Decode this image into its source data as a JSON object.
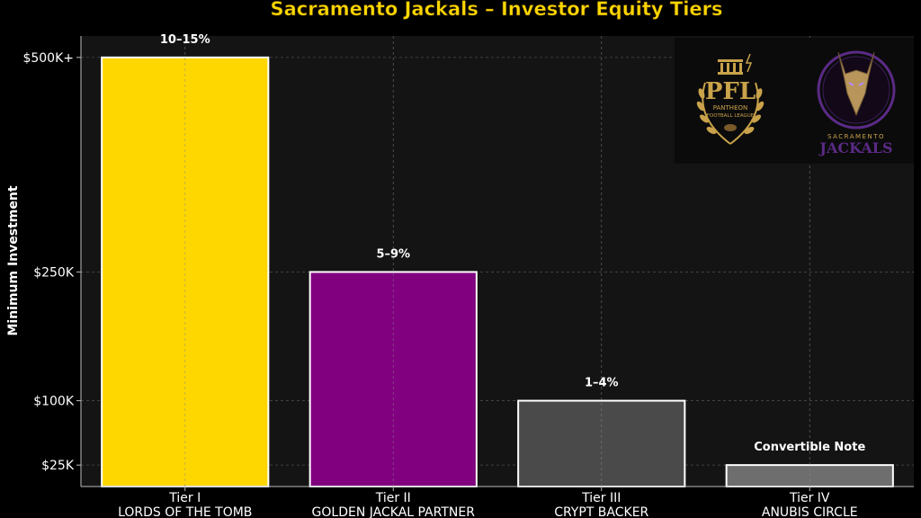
{
  "chart_data": {
    "type": "bar",
    "title": "Sacramento Jackals – Investor Equity Tiers",
    "xlabel": "",
    "ylabel": "Minimum Investment",
    "categories": [
      {
        "tier": "Tier I",
        "name": "LORDS OF THE TOMB"
      },
      {
        "tier": "Tier II",
        "name": "GOLDEN JACKAL PARTNER"
      },
      {
        "tier": "Tier III",
        "name": "CRYPT BACKER"
      },
      {
        "tier": "Tier IV",
        "name": "ANUBIS CIRCLE"
      }
    ],
    "values": [
      500000,
      250000,
      100000,
      25000
    ],
    "equity_labels": [
      "10–15%",
      "5–9%",
      "1–4%",
      "Convertible Note"
    ],
    "bar_colors": [
      "#FFD700",
      "#800080",
      "#4a4a4a",
      "#6e6e6e"
    ],
    "y_ticks": [
      {
        "value": 25000,
        "label": "$25K"
      },
      {
        "value": 100000,
        "label": "$100K"
      },
      {
        "value": 250000,
        "label": "$250K"
      },
      {
        "value": 500000,
        "label": "$500K+"
      }
    ],
    "ylim": [
      0,
      525000
    ],
    "grid": true,
    "legend": "none"
  },
  "logos": {
    "league": {
      "abbr": "PFL",
      "line1": "PANTHEON",
      "line2": "FOOTBALL LEAGUE"
    },
    "team": {
      "line1": "SACRAMENTO",
      "line2": "JACKALS"
    }
  },
  "colors": {
    "background": "#000000",
    "plot_background": "#141414",
    "title": "#FFD700",
    "gold": "#C9A24A",
    "purple": "#5B2A86"
  }
}
